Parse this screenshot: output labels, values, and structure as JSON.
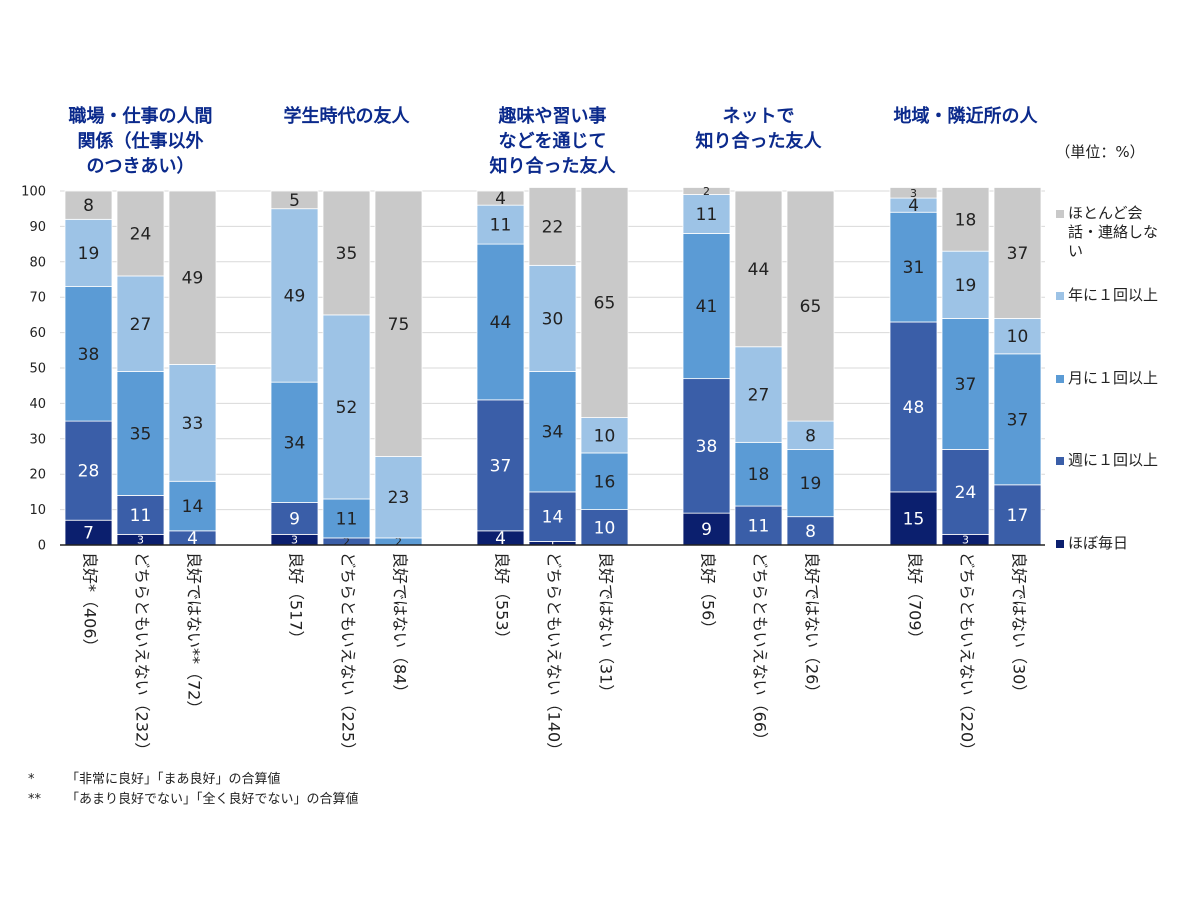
{
  "chart_data": {
    "type": "bar",
    "stacked": true,
    "unit_note": "（単位：%）",
    "ylim": [
      0,
      100
    ],
    "yticks": [
      0,
      10,
      20,
      30,
      40,
      50,
      60,
      70,
      80,
      90,
      100
    ],
    "series": [
      {
        "name": "ほぼ毎日",
        "color": "#0b1f6e"
      },
      {
        "name": "週に１回以上",
        "color": "#3a5ea8"
      },
      {
        "name": "月に１回以上",
        "color": "#5b9bd5"
      },
      {
        "name": "年に１回以上",
        "color": "#9dc3e6"
      },
      {
        "name": "ほとんど会話・連絡しない",
        "color": "#c9c9c9"
      }
    ],
    "legend_order": [
      4,
      3,
      2,
      1,
      0
    ],
    "legend_lines": [
      [
        "ほとんど会",
        "話・連絡しな",
        "い"
      ],
      [
        "年に１回以上"
      ],
      [
        "月に１回以上"
      ],
      [
        "週に１回以上"
      ],
      [
        "ほぼ毎日"
      ]
    ],
    "groups": [
      {
        "title_lines": [
          "職場・仕事の人間",
          "関係（仕事以外",
          "のつきあい）"
        ],
        "bars": [
          {
            "category": "良好*（406）",
            "values": [
              7,
              28,
              38,
              19,
              8
            ]
          },
          {
            "category": "どちらともいえない（232）",
            "values": [
              3,
              11,
              35,
              27,
              24
            ]
          },
          {
            "category": "良好ではない**（72）",
            "values": [
              0,
              4,
              14,
              33,
              49
            ]
          }
        ]
      },
      {
        "title_lines": [
          "学生時代の友人"
        ],
        "bars": [
          {
            "category": "良好（517）",
            "values": [
              3,
              9,
              34,
              49,
              5
            ]
          },
          {
            "category": "どちらともいえない（225）",
            "values": [
              0,
              2,
              11,
              52,
              35
            ]
          },
          {
            "category": "良好ではない（84）",
            "values": [
              0,
              0,
              2,
              23,
              75
            ]
          }
        ]
      },
      {
        "title_lines": [
          "趣味や習い事",
          "などを通じて",
          "知り合った友人"
        ],
        "bars": [
          {
            "category": "良好（553）",
            "values": [
              4,
              37,
              44,
              11,
              4
            ]
          },
          {
            "category": "どちらともいえない（140）",
            "values": [
              1,
              14,
              34,
              30,
              22
            ]
          },
          {
            "category": "良好ではない（31）",
            "values": [
              0,
              10,
              16,
              10,
              65
            ]
          }
        ]
      },
      {
        "title_lines": [
          "ネットで",
          "知り合った友人"
        ],
        "bars": [
          {
            "category": "良好（56）",
            "values": [
              9,
              38,
              41,
              11,
              2
            ]
          },
          {
            "category": "どちらともいえない（66）",
            "values": [
              0,
              11,
              18,
              27,
              44
            ]
          },
          {
            "category": "良好ではない（26）",
            "values": [
              0,
              8,
              19,
              8,
              65
            ]
          }
        ]
      },
      {
        "title_lines": [
          "地域・隣近所の人"
        ],
        "bars": [
          {
            "category": "良好（709）",
            "values": [
              15,
              48,
              31,
              4,
              3
            ]
          },
          {
            "category": "どちらともいえない（220）",
            "values": [
              3,
              24,
              37,
              19,
              18
            ]
          },
          {
            "category": "良好ではない（30）",
            "values": [
              0,
              17,
              37,
              10,
              37
            ]
          }
        ]
      }
    ]
  },
  "notes": [
    {
      "mark": "*",
      "text": "「非常に良好」「まあ良好」の合算値"
    },
    {
      "mark": "**",
      "text": "「あまり良好でない」「全く良好でない」の合算値"
    }
  ]
}
